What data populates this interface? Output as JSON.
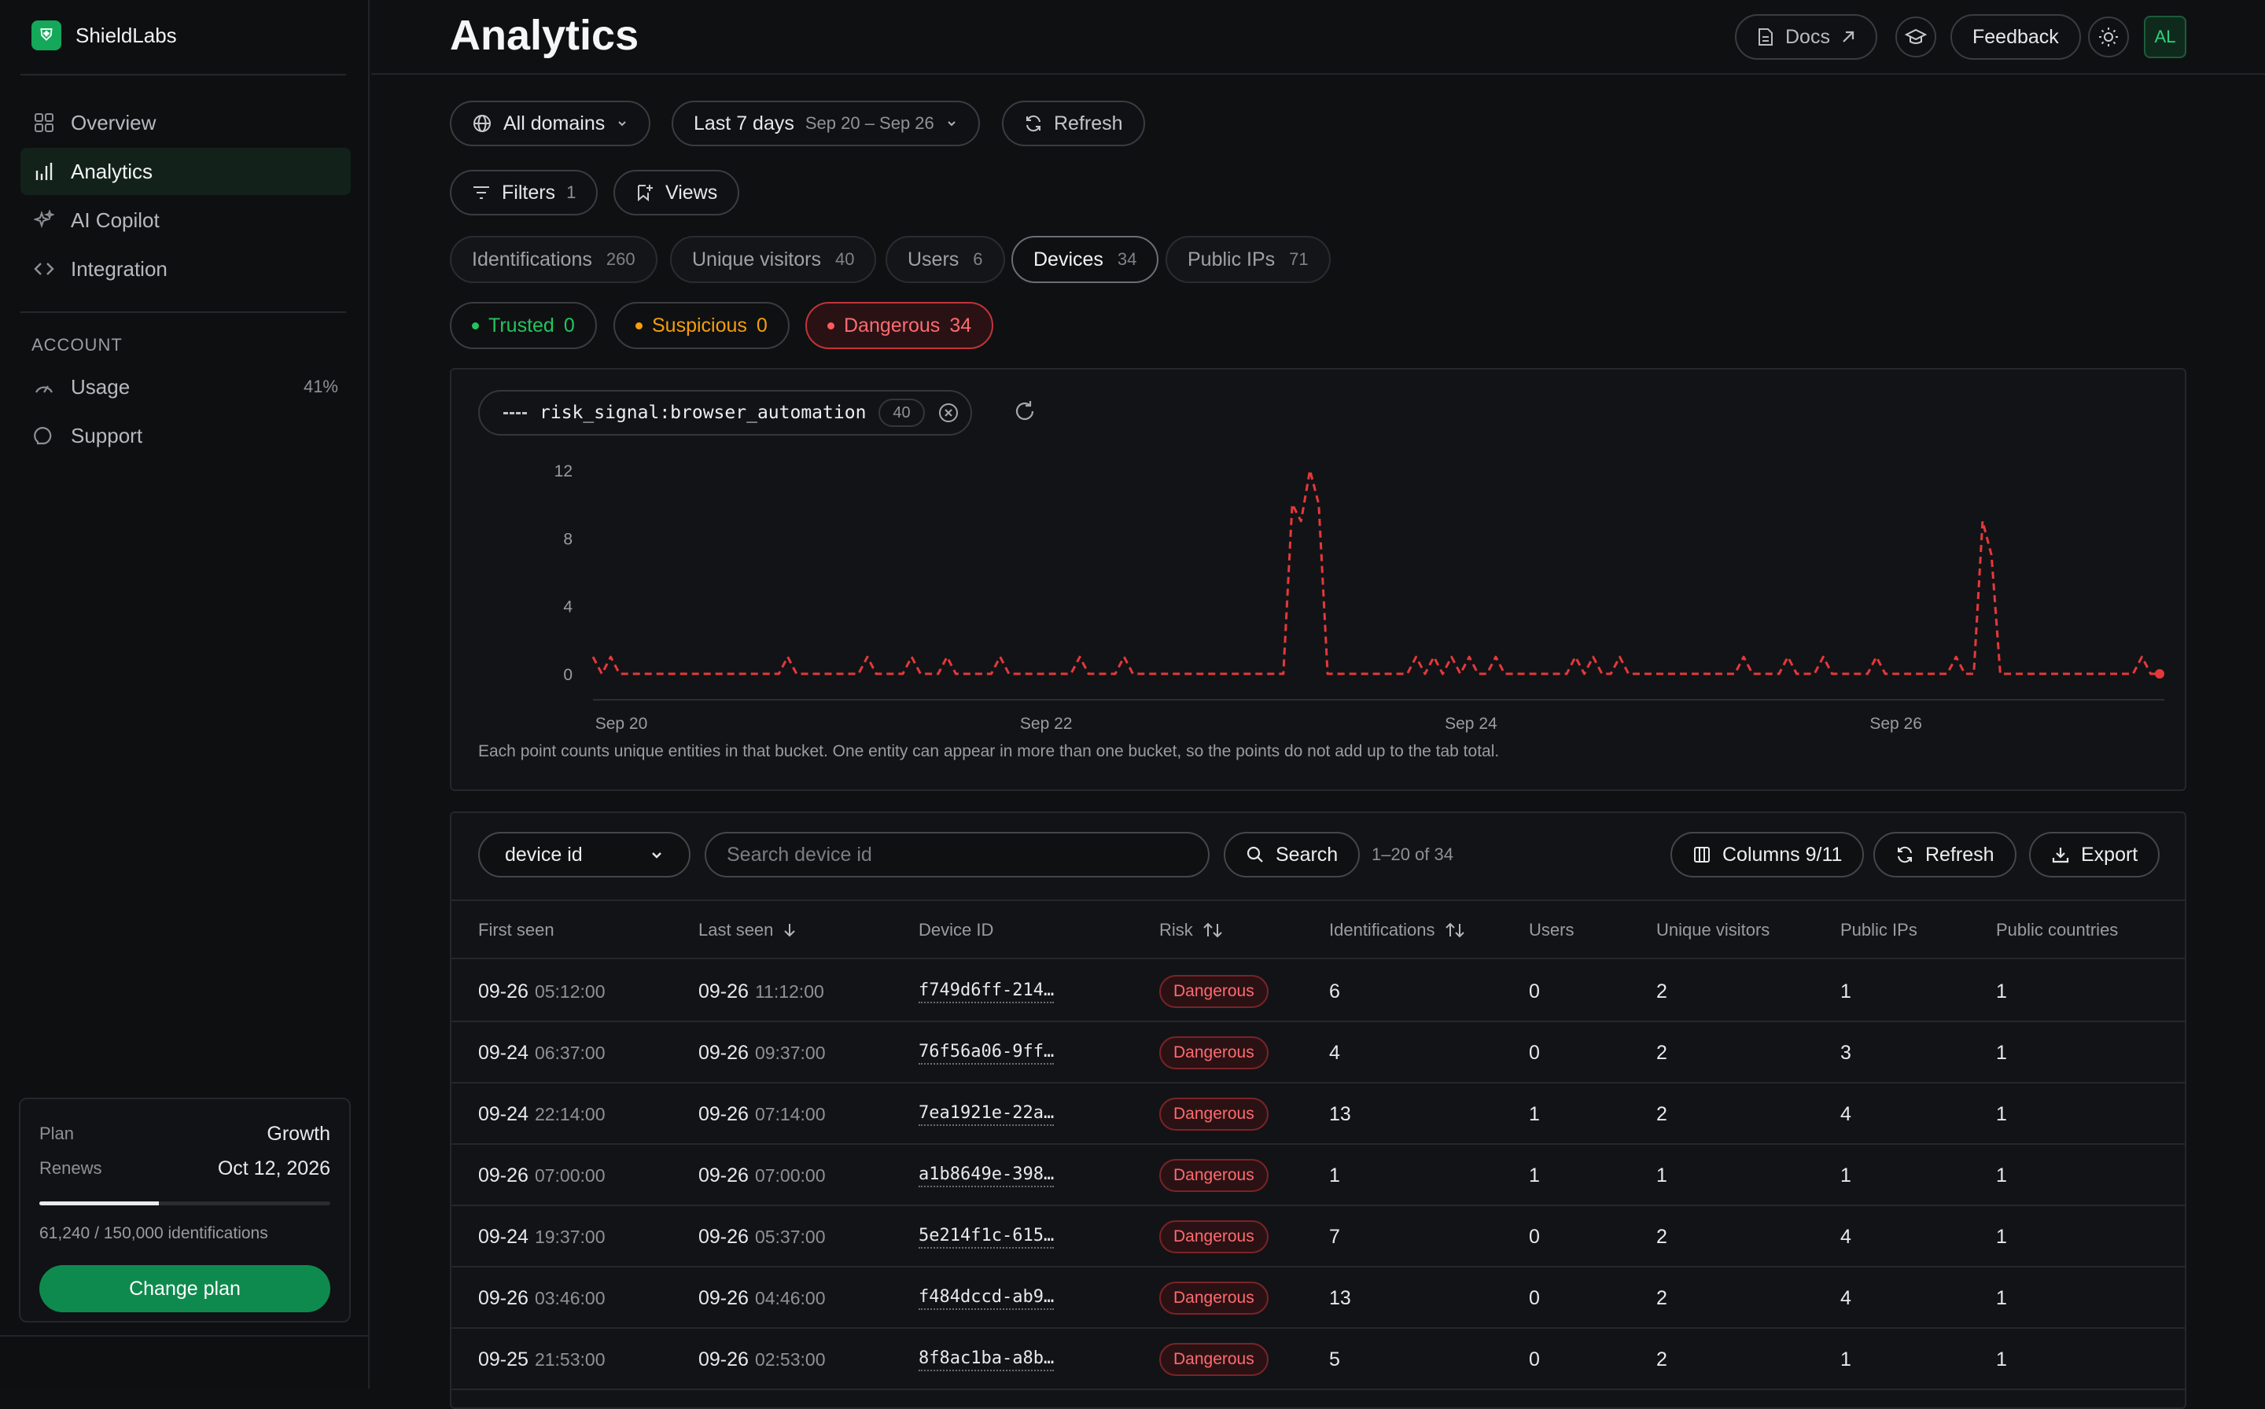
{
  "app": {
    "name": "ShieldLabs",
    "logo_glyph": "⛨"
  },
  "sidebar": {
    "items": [
      {
        "label": "Overview",
        "icon": "grid-icon"
      },
      {
        "label": "Analytics",
        "icon": "bar-chart-icon",
        "active": true
      },
      {
        "label": "AI Copilot",
        "icon": "sparkle-icon"
      },
      {
        "label": "Integration",
        "icon": "code-icon"
      }
    ],
    "section_label": "ACCOUNT",
    "account_items": [
      {
        "label": "Usage",
        "icon": "gauge-icon",
        "meta": "41%"
      },
      {
        "label": "Support",
        "icon": "support-icon"
      }
    ],
    "plan": {
      "plan_label": "Plan",
      "plan_value": "Growth",
      "renews_label": "Renews",
      "renews_value": "Oct 12, 2026",
      "usage_fraction": 0.41,
      "usage_text": "61,240 / 150,000 identifications",
      "button": "Change plan"
    }
  },
  "header": {
    "title": "Analytics",
    "docs": "Docs",
    "feedback": "Feedback",
    "avatar": "AL"
  },
  "filters": {
    "domain": "All domains",
    "period_label": "Last 7 days",
    "period_range": "Sep 20 – Sep 26",
    "refresh": "Refresh",
    "filters_label": "Filters",
    "filters_count": "1",
    "views_label": "Views"
  },
  "tabs": [
    {
      "label": "Identifications",
      "count": "260"
    },
    {
      "label": "Unique visitors",
      "count": "40"
    },
    {
      "label": "Users",
      "count": "6"
    },
    {
      "label": "Devices",
      "count": "34",
      "active": true
    },
    {
      "label": "Public IPs",
      "count": "71"
    }
  ],
  "risk_filters": [
    {
      "label": "Trusted",
      "count": "0",
      "color": "#22c55e"
    },
    {
      "label": "Suspicious",
      "count": "0",
      "color": "#f59e0b"
    },
    {
      "label": "Dangerous",
      "count": "34",
      "color": "#f05252",
      "active": true
    }
  ],
  "chart": {
    "query": "risk_signal:browser_automation",
    "query_count": "40",
    "note": "Each point counts unique entities in that bucket. One entity can appear in more than one bucket, so the points do not add up to the tab total."
  },
  "chart_data": {
    "type": "line",
    "title": "",
    "xlabel": "",
    "ylabel": "",
    "ylim": [
      0,
      12
    ],
    "yticks": [
      "0",
      "4",
      "8",
      "12"
    ],
    "xticks": [
      {
        "label": "Sep 20",
        "x": 0
      },
      {
        "label": "Sep 22",
        "x": 48
      },
      {
        "label": "Sep 24",
        "x": 96
      },
      {
        "label": "Sep 26",
        "x": 144
      }
    ],
    "line_style": "dashed",
    "color": "#e5383b",
    "series": [
      {
        "values": [
          1,
          0,
          1,
          0,
          0,
          0,
          0,
          0,
          0,
          0,
          0,
          0,
          0,
          0,
          0,
          0,
          0,
          0,
          0,
          0,
          0,
          0,
          1,
          0,
          0,
          0,
          0,
          0,
          0,
          0,
          0,
          1,
          0,
          0,
          0,
          0,
          1,
          0,
          0,
          0,
          1,
          0,
          0,
          0,
          0,
          0,
          1,
          0,
          0,
          0,
          0,
          0,
          0,
          0,
          0,
          1,
          0,
          0,
          0,
          0,
          1,
          0,
          0,
          0,
          0,
          0,
          0,
          0,
          0,
          0,
          0,
          0,
          0,
          0,
          0,
          0,
          0,
          0,
          0,
          10,
          9,
          12,
          10,
          0,
          0,
          0,
          0,
          0,
          0,
          0,
          0,
          0,
          0,
          1,
          0,
          1,
          0,
          1,
          0,
          1,
          0,
          0,
          1,
          0,
          0,
          0,
          0,
          0,
          0,
          0,
          0,
          1,
          0,
          1,
          0,
          0,
          1,
          0,
          0,
          0,
          0,
          0,
          0,
          0,
          0,
          0,
          0,
          0,
          0,
          0,
          1,
          0,
          0,
          0,
          0,
          1,
          0,
          0,
          0,
          1,
          0,
          0,
          0,
          0,
          0,
          1,
          0,
          0,
          0,
          0,
          0,
          0,
          0,
          0,
          1,
          0,
          0,
          9,
          7,
          0,
          0,
          0,
          0,
          0,
          0,
          0,
          0,
          0,
          0,
          0,
          0,
          0,
          0,
          0,
          0,
          1,
          0,
          0
        ]
      }
    ]
  },
  "table": {
    "search_field": "device id",
    "search_placeholder": "Search device id",
    "search_button": "Search",
    "range": "1–20 of 34",
    "columns_button": "Columns 9/11",
    "refresh_button": "Refresh",
    "export_button": "Export",
    "headers": [
      "First seen",
      "Last seen",
      "Device ID",
      "Risk",
      "Identifications",
      "Users",
      "Unique visitors",
      "Public IPs",
      "Public countries"
    ],
    "rows": [
      {
        "first_date": "09-26",
        "first_time": "05:12:00",
        "last_date": "09-26",
        "last_time": "11:12:00",
        "device_id": "f749d6ff-214…",
        "risk": "Dangerous",
        "identifications": "6",
        "users": "0",
        "unique_visitors": "2",
        "public_ips": "1",
        "public_countries": "1"
      },
      {
        "first_date": "09-24",
        "first_time": "06:37:00",
        "last_date": "09-26",
        "last_time": "09:37:00",
        "device_id": "76f56a06-9ff…",
        "risk": "Dangerous",
        "identifications": "4",
        "users": "0",
        "unique_visitors": "2",
        "public_ips": "3",
        "public_countries": "1"
      },
      {
        "first_date": "09-24",
        "first_time": "22:14:00",
        "last_date": "09-26",
        "last_time": "07:14:00",
        "device_id": "7ea1921e-22a…",
        "risk": "Dangerous",
        "identifications": "13",
        "users": "1",
        "unique_visitors": "2",
        "public_ips": "4",
        "public_countries": "1"
      },
      {
        "first_date": "09-26",
        "first_time": "07:00:00",
        "last_date": "09-26",
        "last_time": "07:00:00",
        "device_id": "a1b8649e-398…",
        "risk": "Dangerous",
        "identifications": "1",
        "users": "1",
        "unique_visitors": "1",
        "public_ips": "1",
        "public_countries": "1"
      },
      {
        "first_date": "09-24",
        "first_time": "19:37:00",
        "last_date": "09-26",
        "last_time": "05:37:00",
        "device_id": "5e214f1c-615…",
        "risk": "Dangerous",
        "identifications": "7",
        "users": "0",
        "unique_visitors": "2",
        "public_ips": "4",
        "public_countries": "1"
      },
      {
        "first_date": "09-26",
        "first_time": "03:46:00",
        "last_date": "09-26",
        "last_time": "04:46:00",
        "device_id": "f484dccd-ab9…",
        "risk": "Dangerous",
        "identifications": "13",
        "users": "0",
        "unique_visitors": "2",
        "public_ips": "4",
        "public_countries": "1"
      },
      {
        "first_date": "09-25",
        "first_time": "21:53:00",
        "last_date": "09-26",
        "last_time": "02:53:00",
        "device_id": "8f8ac1ba-a8b…",
        "risk": "Dangerous",
        "identifications": "5",
        "users": "0",
        "unique_visitors": "2",
        "public_ips": "1",
        "public_countries": "1"
      }
    ]
  }
}
